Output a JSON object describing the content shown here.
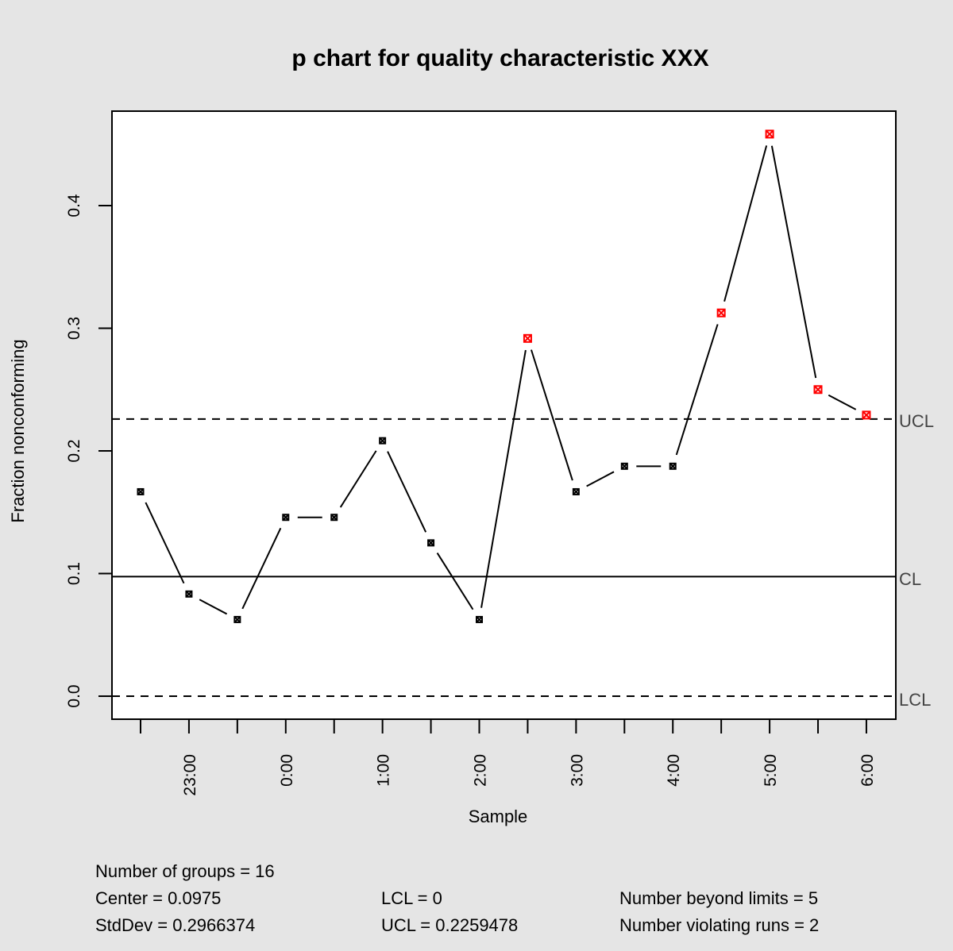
{
  "chart_data": {
    "type": "line",
    "title": "p chart for quality characteristic XXX",
    "xlabel": "Sample",
    "ylabel": "Fraction nonconforming",
    "ylim": [
      -0.018,
      0.478
    ],
    "y_ticks": [
      0.0,
      0.1,
      0.2,
      0.3,
      0.4
    ],
    "y_tick_labels": [
      "0.0",
      "0.1",
      "0.2",
      "0.3",
      "0.4"
    ],
    "x_tick_positions": 16,
    "x_tick_labels": [
      {
        "index": 2,
        "label": "23:00"
      },
      {
        "index": 4,
        "label": "0:00"
      },
      {
        "index": 6,
        "label": "1:00"
      },
      {
        "index": 8,
        "label": "2:00"
      },
      {
        "index": 10,
        "label": "3:00"
      },
      {
        "index": 12,
        "label": "4:00"
      },
      {
        "index": 14,
        "label": "5:00"
      },
      {
        "index": 16,
        "label": "6:00"
      }
    ],
    "grid": false,
    "series": [
      {
        "name": "Fraction nonconforming",
        "x": [
          1,
          2,
          3,
          4,
          5,
          6,
          7,
          8,
          9,
          10,
          11,
          12,
          13,
          14,
          15,
          16
        ],
        "values": [
          0.1667,
          0.0833,
          0.0625,
          0.1458,
          0.1458,
          0.2083,
          0.125,
          0.0625,
          0.2917,
          0.1667,
          0.1875,
          0.1875,
          0.3125,
          0.4583,
          0.25,
          0.2292
        ],
        "out_of_control": [
          false,
          false,
          false,
          false,
          false,
          false,
          false,
          false,
          true,
          false,
          false,
          false,
          true,
          true,
          true,
          true
        ]
      }
    ],
    "reference_lines": [
      {
        "name": "UCL",
        "value": 0.2259478,
        "style": "dashed"
      },
      {
        "name": "CL",
        "value": 0.0975,
        "style": "solid"
      },
      {
        "name": "LCL",
        "value": 0.0,
        "style": "dashed"
      }
    ],
    "colors": {
      "in_control": "#000000",
      "out_of_control": "#ff0000",
      "background": "#e5e5e5",
      "plot_bg": "#ffffff",
      "limit_label": "#444444"
    }
  },
  "limit_labels": {
    "ucl": "UCL",
    "cl": "CL",
    "lcl": "LCL"
  },
  "summary": {
    "groups": "Number of groups = 16",
    "center": "Center = 0.0975",
    "stddev": "StdDev = 0.2966374",
    "lcl": "LCL = 0",
    "ucl": "UCL = 0.2259478",
    "beyond_limits": "Number beyond limits = 5",
    "violating_runs": "Number violating runs = 2"
  }
}
